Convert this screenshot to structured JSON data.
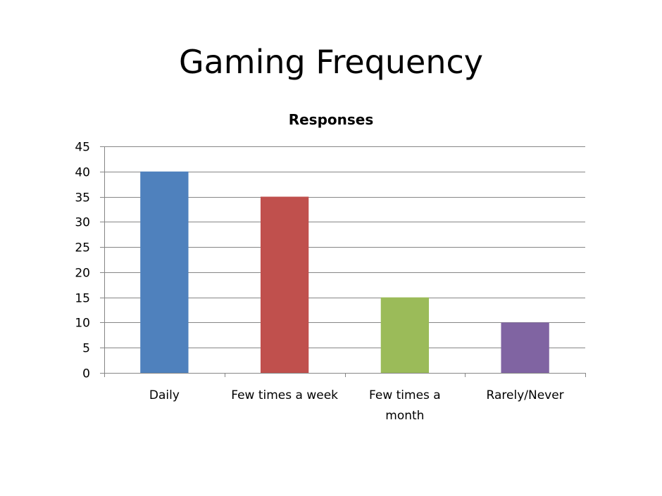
{
  "page": {
    "title": "Gaming Frequency"
  },
  "chart_data": {
    "type": "bar",
    "title": "Responses",
    "categories": [
      [
        "Daily"
      ],
      [
        "Few times a week"
      ],
      [
        "Few times a",
        "month"
      ],
      [
        "Rarely/Never"
      ]
    ],
    "series": [
      {
        "values": [
          40,
          35,
          15,
          10
        ]
      }
    ],
    "bar_colors": [
      "#4F81BD",
      "#C0504D",
      "#9BBB59",
      "#8064A2"
    ],
    "ylim": [
      0,
      45
    ],
    "yticks": [
      0,
      5,
      10,
      15,
      20,
      25,
      30,
      35,
      40,
      45
    ],
    "grid": true,
    "legend": "none",
    "xlabel": "",
    "ylabel": ""
  }
}
